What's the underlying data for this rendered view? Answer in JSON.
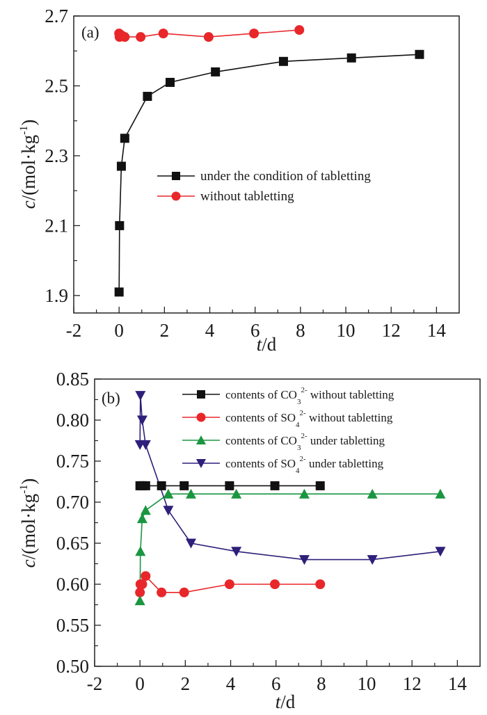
{
  "chart_data": [
    {
      "type": "line",
      "panel_label": "(a)",
      "xlabel_italic": "t",
      "xlabel_rest": "/d",
      "ylabel_italic": "c",
      "ylabel_rest": "/(mol·kg",
      "ylabel_sup": "-1",
      "ylabel_close": ")",
      "xlim": [
        -2,
        15
      ],
      "ylim": [
        1.85,
        2.7
      ],
      "xticks": [
        -2,
        0,
        2,
        4,
        6,
        8,
        10,
        12,
        14
      ],
      "xtick_labels": [
        "-2",
        "0",
        "2",
        "4",
        "6",
        "8",
        "10",
        "12",
        "14"
      ],
      "yticks": [
        1.9,
        2.1,
        2.3,
        2.5,
        2.7
      ],
      "ytick_labels": [
        "1.9",
        "2.1",
        "2.3",
        "2.5",
        "2.7"
      ],
      "grid": false,
      "legend_position": "center-right",
      "series": [
        {
          "name": "under the condition of tabletting",
          "color": "#111111",
          "marker": "square",
          "x": [
            0,
            0.02,
            0.1,
            0.25,
            1.25,
            2.25,
            4.25,
            7.25,
            10.25,
            13.25
          ],
          "y": [
            1.91,
            2.1,
            2.27,
            2.35,
            2.47,
            2.51,
            2.54,
            2.57,
            2.58,
            2.59
          ]
        },
        {
          "name": "without tabletting",
          "color": "#e8272b",
          "marker": "circle",
          "x": [
            0,
            0.02,
            0.1,
            0.25,
            0.95,
            1.95,
            3.95,
            5.95,
            7.95
          ],
          "y": [
            2.65,
            2.64,
            2.645,
            2.64,
            2.64,
            2.65,
            2.64,
            2.65,
            2.66
          ]
        }
      ]
    },
    {
      "type": "line",
      "panel_label": "(b)",
      "xlabel_italic": "t",
      "xlabel_rest": "/d",
      "ylabel_italic": "c",
      "ylabel_rest": "/(mol·kg",
      "ylabel_sup": "-1",
      "ylabel_close": ")",
      "xlim": [
        -2,
        15
      ],
      "ylim": [
        0.5,
        0.85
      ],
      "xticks": [
        -2,
        0,
        2,
        4,
        6,
        8,
        10,
        12,
        14
      ],
      "xtick_labels": [
        "-2",
        "0",
        "2",
        "4",
        "6",
        "8",
        "10",
        "12",
        "14"
      ],
      "yticks": [
        0.5,
        0.55,
        0.6,
        0.65,
        0.7,
        0.75,
        0.8,
        0.85
      ],
      "ytick_labels": [
        "0.50",
        "0.55",
        "0.60",
        "0.65",
        "0.70",
        "0.75",
        "0.80",
        "0.85"
      ],
      "grid": false,
      "legend_position": "top-right",
      "series": [
        {
          "name": "contents of CO3 2- without tabletting",
          "legend_pre": "contents of CO",
          "legend_sub": "3",
          "legend_sup": "2-",
          "legend_post": " without tabletting",
          "color": "#111111",
          "marker": "square",
          "x": [
            0,
            0.1,
            0.25,
            0.95,
            1.95,
            3.95,
            5.95,
            7.95
          ],
          "y": [
            0.72,
            0.72,
            0.72,
            0.72,
            0.72,
            0.72,
            0.72,
            0.72
          ]
        },
        {
          "name": "contents of SO4 2- without tabletting",
          "legend_pre": "contents of SO",
          "legend_sub": "4",
          "legend_sup": "2-",
          "legend_post": " without tabletting",
          "color": "#e8272b",
          "marker": "circle",
          "x": [
            0,
            0.02,
            0.1,
            0.25,
            0.95,
            1.95,
            3.95,
            5.95,
            7.95
          ],
          "y": [
            0.59,
            0.6,
            0.6,
            0.61,
            0.59,
            0.59,
            0.6,
            0.6,
            0.6
          ]
        },
        {
          "name": "contents of CO3 2- under tabletting",
          "legend_pre": "contents of CO",
          "legend_sub": "3",
          "legend_sup": "2-",
          "legend_post": " under tabletting",
          "color": "#1a9641",
          "marker": "triangle-up",
          "x": [
            0,
            0.02,
            0.1,
            0.25,
            1.25,
            2.25,
            4.25,
            7.25,
            10.25,
            13.25
          ],
          "y": [
            0.58,
            0.64,
            0.68,
            0.69,
            0.71,
            0.71,
            0.71,
            0.71,
            0.71,
            0.71
          ]
        },
        {
          "name": "contents of SO4 2- under tabletting",
          "legend_pre": "contents of SO",
          "legend_sub": "4",
          "legend_sup": "2-",
          "legend_post": " under tabletting",
          "color": "#2e1f7a",
          "marker": "triangle-down",
          "x": [
            0,
            0.02,
            0.1,
            0.25,
            1.25,
            2.25,
            4.25,
            7.25,
            10.25,
            13.25
          ],
          "y": [
            0.77,
            0.83,
            0.8,
            0.77,
            0.69,
            0.65,
            0.64,
            0.63,
            0.63,
            0.64
          ]
        }
      ]
    }
  ]
}
